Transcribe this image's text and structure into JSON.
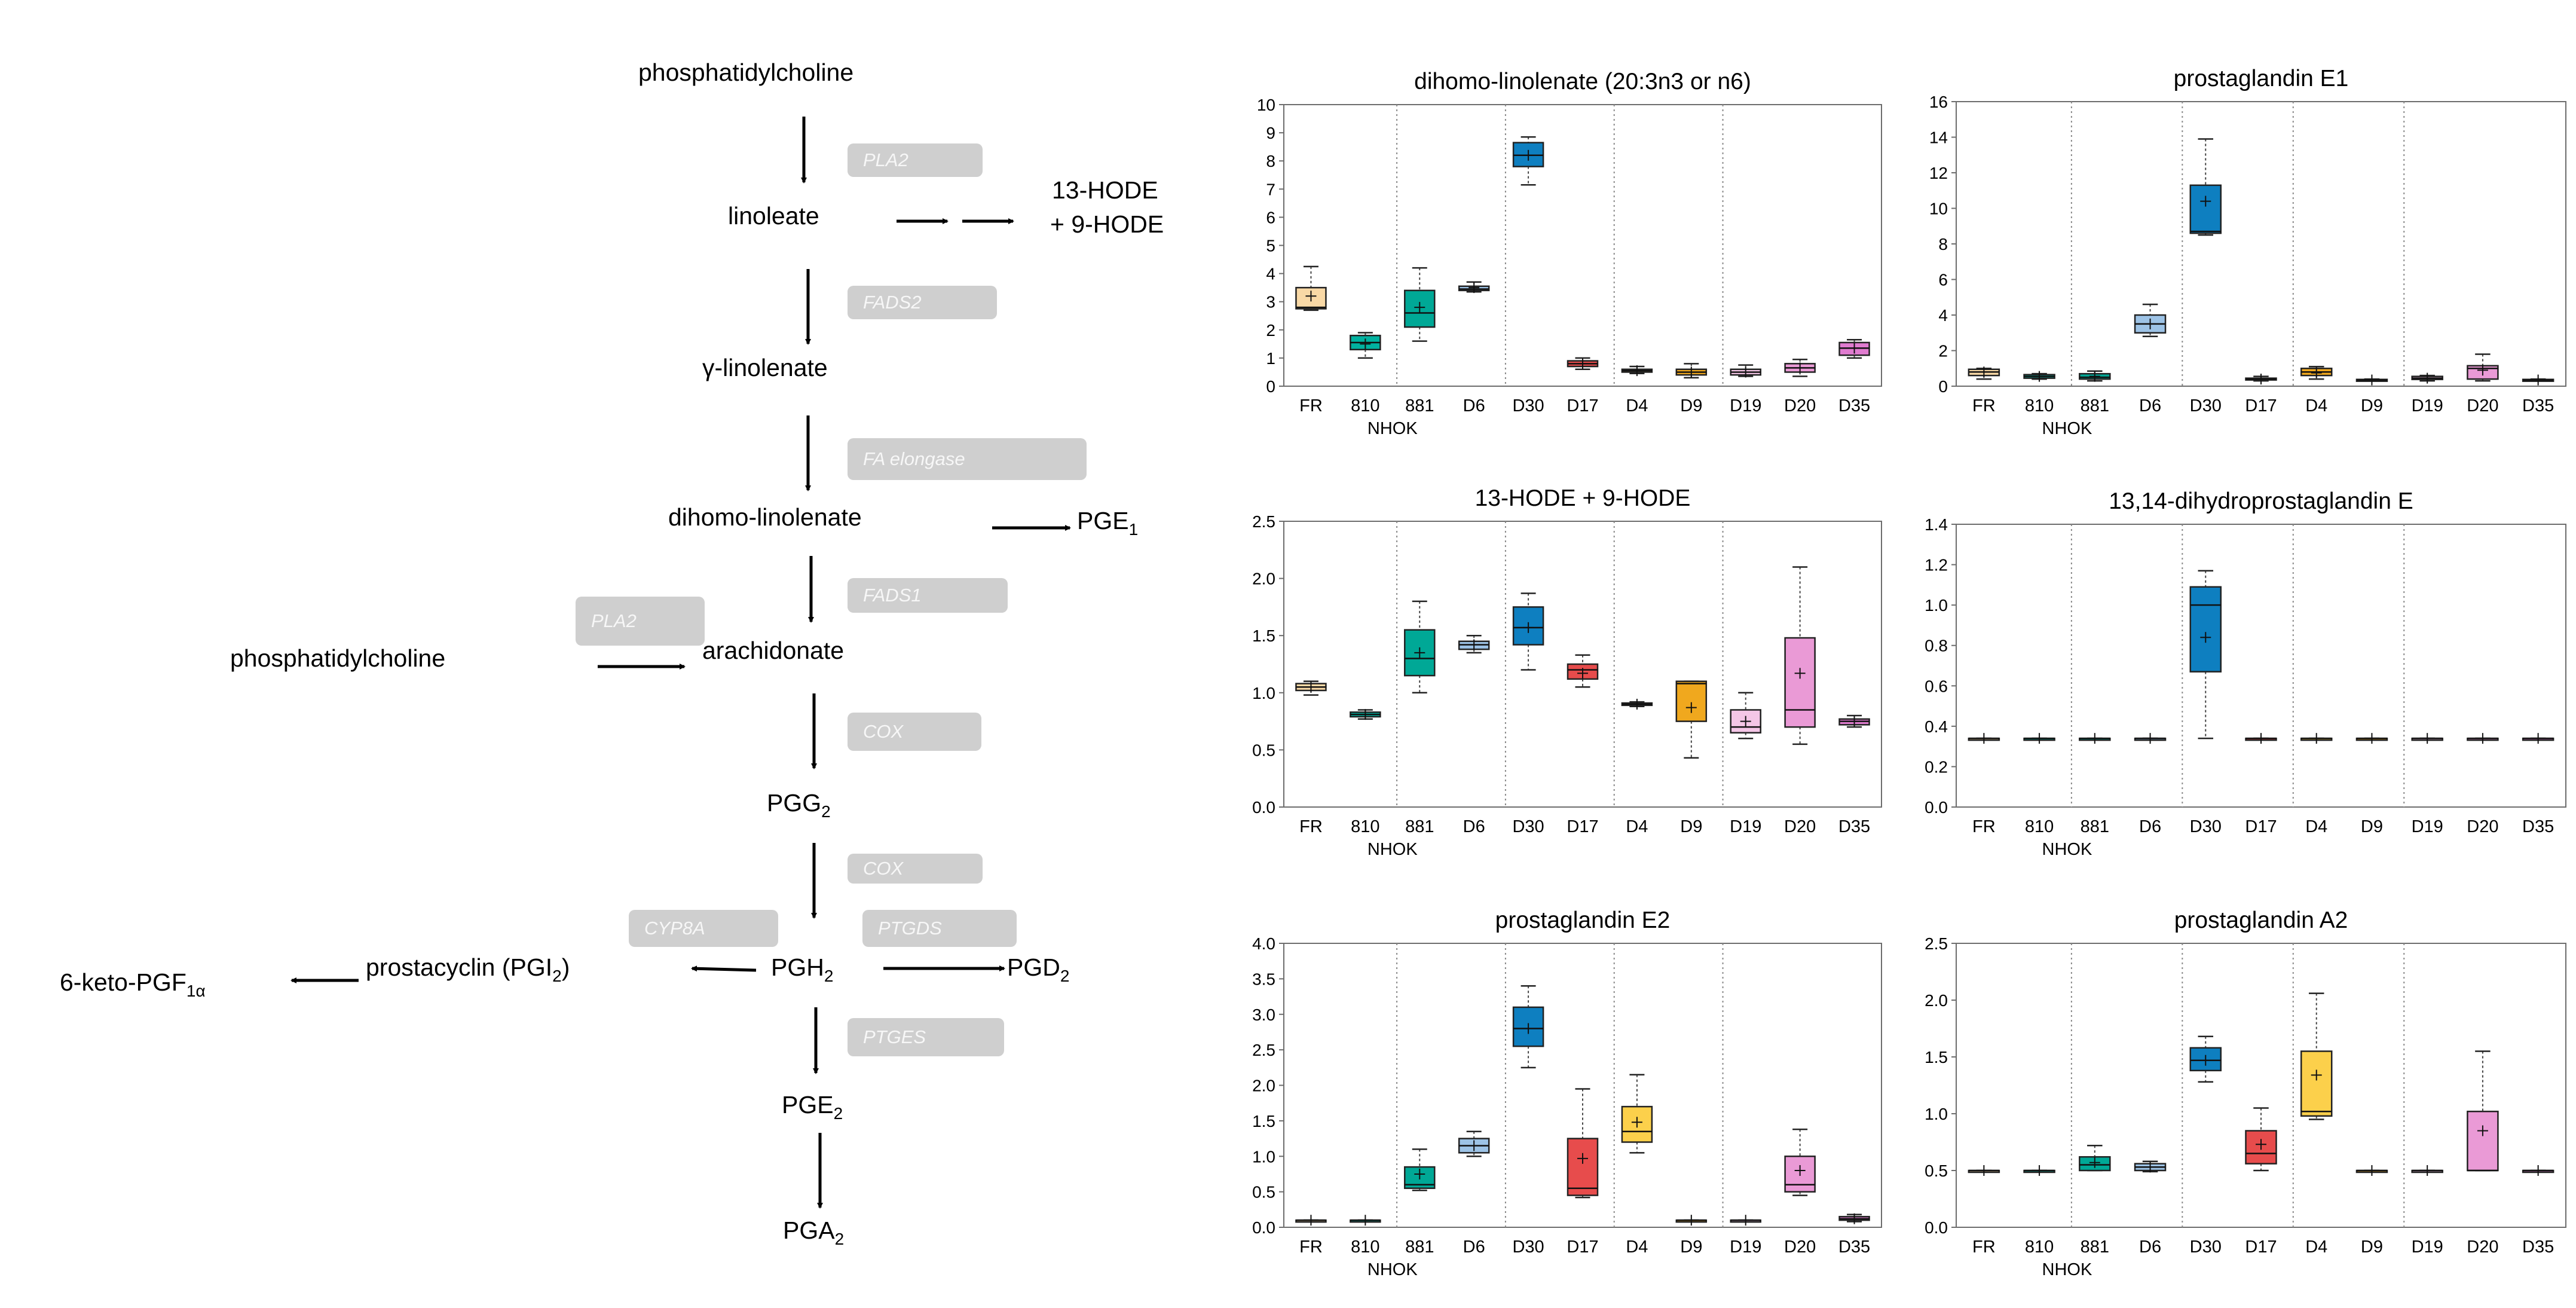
{
  "pathway": {
    "nodes": {
      "pc_top": "phosphatidylcholine",
      "linoleate": "linoleate",
      "hode_line1": "13-HODE",
      "hode_line2": "+ 9-HODE",
      "gamma_linolenate": "γ-linolenate",
      "dihomo_linolenate": "dihomo-linolenate",
      "pge1_base": "PGE",
      "pge1_sub": "1",
      "arachidonate": "arachidonate",
      "pc_left": "phosphatidylcholine",
      "pgg2_base": "PGG",
      "pgg2_sub": "2",
      "pgh2_base": "PGH",
      "pgh2_sub": "2",
      "pgd2_base": "PGD",
      "pgd2_sub": "2",
      "prostacyclin_base": "prostacyclin (PGI",
      "prostacyclin_sub": "2",
      "prostacyclin_end": ")",
      "keto_base": "6-keto-PGF",
      "keto_sub": "1α",
      "pge2_base": "PGE",
      "pge2_sub": "2",
      "pga2_base": "PGA",
      "pga2_sub": "2"
    },
    "enzymes": {
      "pla2_top": "PLA2",
      "fads2": "FADS2",
      "fa_elongase": "FA elongase",
      "fads1": "FADS1",
      "pla2_left": "PLA2",
      "cox_1": "COX",
      "cox_2": "COX",
      "cyp8a": "CYP8A",
      "ptgds": "PTGDS",
      "ptges": "PTGES"
    }
  },
  "chart_data": [
    {
      "type": "box",
      "title": "dihomo-linolenate (20:3n3 or n6)",
      "categories": [
        "FR",
        "810",
        "881",
        "D6",
        "D30",
        "D17",
        "D4",
        "D9",
        "D19",
        "D20",
        "D35"
      ],
      "group_label": "NHOK",
      "ylim": [
        0,
        10
      ],
      "yticks": [
        "0",
        "1",
        "2",
        "3",
        "4",
        "5",
        "6",
        "7",
        "8",
        "9",
        "10"
      ],
      "boxes": [
        {
          "min": 2.7,
          "q1": 2.75,
          "median": 2.8,
          "q3": 3.5,
          "max": 4.25,
          "mean": 3.2,
          "color": "#f9d9a6"
        },
        {
          "min": 1.0,
          "q1": 1.3,
          "median": 1.55,
          "q3": 1.8,
          "max": 1.9,
          "mean": 1.5,
          "color": "#00b2a0"
        },
        {
          "min": 1.6,
          "q1": 2.1,
          "median": 2.6,
          "q3": 3.4,
          "max": 4.2,
          "mean": 2.8,
          "color": "#00a896"
        },
        {
          "min": 3.35,
          "q1": 3.4,
          "median": 3.45,
          "q3": 3.55,
          "max": 3.7,
          "mean": 3.5,
          "color": "#9dc3e6"
        },
        {
          "min": 7.15,
          "q1": 7.8,
          "median": 8.2,
          "q3": 8.65,
          "max": 8.85,
          "mean": 8.2,
          "color": "#0e7fc0"
        },
        {
          "min": 0.6,
          "q1": 0.7,
          "median": 0.8,
          "q3": 0.9,
          "max": 1.0,
          "mean": 0.8,
          "color": "#e74c4c"
        },
        {
          "min": 0.45,
          "q1": 0.5,
          "median": 0.55,
          "q3": 0.6,
          "max": 0.7,
          "mean": 0.55,
          "color": "#fcd04b"
        },
        {
          "min": 0.3,
          "q1": 0.4,
          "median": 0.5,
          "q3": 0.6,
          "max": 0.8,
          "mean": 0.5,
          "color": "#f0a81e"
        },
        {
          "min": 0.35,
          "q1": 0.4,
          "median": 0.5,
          "q3": 0.6,
          "max": 0.75,
          "mean": 0.5,
          "color": "#f4c6e6"
        },
        {
          "min": 0.35,
          "q1": 0.5,
          "median": 0.65,
          "q3": 0.8,
          "max": 0.95,
          "mean": 0.65,
          "color": "#ea9ad6"
        },
        {
          "min": 1.0,
          "q1": 1.1,
          "median": 1.35,
          "q3": 1.55,
          "max": 1.65,
          "mean": 1.35,
          "color": "#e07cd0"
        }
      ]
    },
    {
      "type": "box",
      "title": "prostaglandin E1",
      "categories": [
        "FR",
        "810",
        "881",
        "D6",
        "D30",
        "D17",
        "D4",
        "D9",
        "D19",
        "D20",
        "D35"
      ],
      "group_label": "NHOK",
      "ylim": [
        0,
        16
      ],
      "yticks": [
        "0",
        "2",
        "4",
        "6",
        "8",
        "10",
        "12",
        "14",
        "16"
      ],
      "boxes": [
        {
          "min": 0.4,
          "q1": 0.6,
          "median": 0.8,
          "q3": 0.95,
          "max": 1.0,
          "mean": 0.8,
          "color": "#f9d9a6"
        },
        {
          "min": 0.4,
          "q1": 0.45,
          "median": 0.55,
          "q3": 0.65,
          "max": 0.7,
          "mean": 0.55,
          "color": "#00b2a0"
        },
        {
          "min": 0.3,
          "q1": 0.4,
          "median": 0.5,
          "q3": 0.7,
          "max": 0.85,
          "mean": 0.55,
          "color": "#00a896"
        },
        {
          "min": 2.8,
          "q1": 3.0,
          "median": 3.5,
          "q3": 4.0,
          "max": 4.6,
          "mean": 3.5,
          "color": "#9dc3e6"
        },
        {
          "min": 8.5,
          "q1": 8.6,
          "median": 8.7,
          "q3": 11.3,
          "max": 13.9,
          "mean": 10.4,
          "color": "#0e7fc0"
        },
        {
          "min": 0.3,
          "q1": 0.35,
          "median": 0.4,
          "q3": 0.45,
          "max": 0.55,
          "mean": 0.4,
          "color": "#e74c4c"
        },
        {
          "min": 0.4,
          "q1": 0.6,
          "median": 0.8,
          "q3": 1.0,
          "max": 1.1,
          "mean": 0.75,
          "color": "#f0a81e"
        },
        {
          "min": 0.3,
          "q1": 0.33,
          "median": 0.35,
          "q3": 0.38,
          "max": 0.4,
          "mean": 0.35,
          "color": "#f4c6e6"
        },
        {
          "min": 0.3,
          "q1": 0.38,
          "median": 0.45,
          "q3": 0.55,
          "max": 0.6,
          "mean": 0.45,
          "color": "#f4c6e6"
        },
        {
          "min": 0.3,
          "q1": 0.4,
          "median": 1.0,
          "q3": 1.15,
          "max": 1.8,
          "mean": 0.9,
          "color": "#ea9ad6"
        },
        {
          "min": 0.3,
          "q1": 0.33,
          "median": 0.35,
          "q3": 0.38,
          "max": 0.4,
          "mean": 0.35,
          "color": "#e07cd0"
        }
      ]
    },
    {
      "type": "box",
      "title": "13-HODE + 9-HODE",
      "categories": [
        "FR",
        "810",
        "881",
        "D6",
        "D30",
        "D17",
        "D4",
        "D9",
        "D19",
        "D20",
        "D35"
      ],
      "group_label": "NHOK",
      "ylim": [
        0,
        2.5
      ],
      "yticks": [
        "0.0",
        "0.5",
        "1.0",
        "1.5",
        "2.0",
        "2.5"
      ],
      "boxes": [
        {
          "min": 0.98,
          "q1": 1.02,
          "median": 1.05,
          "q3": 1.08,
          "max": 1.1,
          "mean": 1.05,
          "color": "#f9d9a6"
        },
        {
          "min": 0.77,
          "q1": 0.79,
          "median": 0.81,
          "q3": 0.83,
          "max": 0.85,
          "mean": 0.81,
          "color": "#00b2a0"
        },
        {
          "min": 1.0,
          "q1": 1.15,
          "median": 1.3,
          "q3": 1.55,
          "max": 1.8,
          "mean": 1.35,
          "color": "#00a896"
        },
        {
          "min": 1.35,
          "q1": 1.38,
          "median": 1.42,
          "q3": 1.45,
          "max": 1.5,
          "mean": 1.42,
          "color": "#9dc3e6"
        },
        {
          "min": 1.2,
          "q1": 1.42,
          "median": 1.57,
          "q3": 1.75,
          "max": 1.87,
          "mean": 1.57,
          "color": "#0e7fc0"
        },
        {
          "min": 1.05,
          "q1": 1.12,
          "median": 1.2,
          "q3": 1.25,
          "max": 1.33,
          "mean": 1.17,
          "color": "#e74c4c"
        },
        {
          "min": 0.88,
          "q1": 0.89,
          "median": 0.9,
          "q3": 0.91,
          "max": 0.92,
          "mean": 0.9,
          "color": "#fcd04b"
        },
        {
          "min": 0.43,
          "q1": 0.75,
          "median": 1.08,
          "q3": 1.1,
          "max": 1.1,
          "mean": 0.87,
          "color": "#f0a81e"
        },
        {
          "min": 0.6,
          "q1": 0.65,
          "median": 0.7,
          "q3": 0.85,
          "max": 1.0,
          "mean": 0.75,
          "color": "#f4c6e6"
        },
        {
          "min": 0.55,
          "q1": 0.7,
          "median": 0.85,
          "q3": 1.48,
          "max": 2.1,
          "mean": 1.17,
          "color": "#ea9ad6"
        },
        {
          "min": 0.7,
          "q1": 0.72,
          "median": 0.75,
          "q3": 0.77,
          "max": 0.8,
          "mean": 0.75,
          "color": "#e07cd0"
        }
      ]
    },
    {
      "type": "box",
      "title": "13,14-dihydroprostaglandin E",
      "categories": [
        "FR",
        "810",
        "881",
        "D6",
        "D30",
        "D17",
        "D4",
        "D9",
        "D19",
        "D20",
        "D35"
      ],
      "group_label": "NHOK",
      "ylim": [
        0,
        1.4
      ],
      "yticks": [
        "0.0",
        "0.2",
        "0.4",
        "0.6",
        "0.8",
        "1.0",
        "1.2",
        "1.4"
      ],
      "boxes": [
        {
          "min": 0.34,
          "q1": 0.34,
          "median": 0.34,
          "q3": 0.34,
          "max": 0.34,
          "mean": 0.34,
          "color": "#f9d9a6"
        },
        {
          "min": 0.34,
          "q1": 0.34,
          "median": 0.34,
          "q3": 0.34,
          "max": 0.34,
          "mean": 0.34,
          "color": "#00b2a0"
        },
        {
          "min": 0.34,
          "q1": 0.34,
          "median": 0.34,
          "q3": 0.34,
          "max": 0.34,
          "mean": 0.34,
          "color": "#00a896"
        },
        {
          "min": 0.34,
          "q1": 0.34,
          "median": 0.34,
          "q3": 0.34,
          "max": 0.34,
          "mean": 0.34,
          "color": "#9dc3e6"
        },
        {
          "min": 0.34,
          "q1": 0.67,
          "median": 1.0,
          "q3": 1.09,
          "max": 1.17,
          "mean": 0.84,
          "color": "#0e7fc0"
        },
        {
          "min": 0.34,
          "q1": 0.34,
          "median": 0.34,
          "q3": 0.34,
          "max": 0.34,
          "mean": 0.34,
          "color": "#e74c4c"
        },
        {
          "min": 0.34,
          "q1": 0.34,
          "median": 0.34,
          "q3": 0.34,
          "max": 0.34,
          "mean": 0.34,
          "color": "#fcd04b"
        },
        {
          "min": 0.34,
          "q1": 0.34,
          "median": 0.34,
          "q3": 0.34,
          "max": 0.34,
          "mean": 0.34,
          "color": "#f0a81e"
        },
        {
          "min": 0.34,
          "q1": 0.34,
          "median": 0.34,
          "q3": 0.34,
          "max": 0.34,
          "mean": 0.34,
          "color": "#f4c6e6"
        },
        {
          "min": 0.34,
          "q1": 0.34,
          "median": 0.34,
          "q3": 0.34,
          "max": 0.34,
          "mean": 0.34,
          "color": "#ea9ad6"
        },
        {
          "min": 0.34,
          "q1": 0.34,
          "median": 0.34,
          "q3": 0.34,
          "max": 0.34,
          "mean": 0.34,
          "color": "#e07cd0"
        }
      ]
    },
    {
      "type": "box",
      "title": "prostaglandin E2",
      "categories": [
        "FR",
        "810",
        "881",
        "D6",
        "D30",
        "D17",
        "D4",
        "D9",
        "D19",
        "D20",
        "D35"
      ],
      "group_label": "NHOK",
      "ylim": [
        0,
        4
      ],
      "yticks": [
        "0.0",
        "0.5",
        "1.0",
        "1.5",
        "2.0",
        "2.5",
        "3.0",
        "3.5",
        "4.0"
      ],
      "boxes": [
        {
          "min": 0.1,
          "q1": 0.1,
          "median": 0.1,
          "q3": 0.1,
          "max": 0.1,
          "mean": 0.1,
          "color": "#f9d9a6"
        },
        {
          "min": 0.1,
          "q1": 0.1,
          "median": 0.1,
          "q3": 0.1,
          "max": 0.1,
          "mean": 0.1,
          "color": "#00b2a0"
        },
        {
          "min": 0.52,
          "q1": 0.55,
          "median": 0.6,
          "q3": 0.85,
          "max": 1.1,
          "mean": 0.75,
          "color": "#00a896"
        },
        {
          "min": 1.0,
          "q1": 1.05,
          "median": 1.15,
          "q3": 1.25,
          "max": 1.35,
          "mean": 1.15,
          "color": "#9dc3e6"
        },
        {
          "min": 2.25,
          "q1": 2.55,
          "median": 2.8,
          "q3": 3.1,
          "max": 3.4,
          "mean": 2.8,
          "color": "#0e7fc0"
        },
        {
          "min": 0.42,
          "q1": 0.45,
          "median": 0.55,
          "q3": 1.25,
          "max": 1.95,
          "mean": 0.97,
          "color": "#e74c4c"
        },
        {
          "min": 1.05,
          "q1": 1.2,
          "median": 1.35,
          "q3": 1.7,
          "max": 2.15,
          "mean": 1.48,
          "color": "#fcd04b"
        },
        {
          "min": 0.1,
          "q1": 0.1,
          "median": 0.1,
          "q3": 0.1,
          "max": 0.1,
          "mean": 0.1,
          "color": "#f0a81e"
        },
        {
          "min": 0.1,
          "q1": 0.1,
          "median": 0.1,
          "q3": 0.1,
          "max": 0.1,
          "mean": 0.1,
          "color": "#f4c6e6"
        },
        {
          "min": 0.45,
          "q1": 0.5,
          "median": 0.6,
          "q3": 1.0,
          "max": 1.38,
          "mean": 0.8,
          "color": "#ea9ad6"
        },
        {
          "min": 0.08,
          "q1": 0.1,
          "median": 0.12,
          "q3": 0.15,
          "max": 0.18,
          "mean": 0.12,
          "color": "#e07cd0"
        }
      ]
    },
    {
      "type": "box",
      "title": "prostaglandin A2",
      "categories": [
        "FR",
        "810",
        "881",
        "D6",
        "D30",
        "D17",
        "D4",
        "D9",
        "D19",
        "D20",
        "D35"
      ],
      "group_label": "NHOK",
      "ylim": [
        0,
        2.5
      ],
      "yticks": [
        "0.0",
        "0.5",
        "1.0",
        "1.5",
        "2.0",
        "2.5"
      ],
      "boxes": [
        {
          "min": 0.5,
          "q1": 0.5,
          "median": 0.5,
          "q3": 0.5,
          "max": 0.5,
          "mean": 0.5,
          "color": "#f9d9a6"
        },
        {
          "min": 0.5,
          "q1": 0.5,
          "median": 0.5,
          "q3": 0.5,
          "max": 0.5,
          "mean": 0.5,
          "color": "#00b2a0"
        },
        {
          "min": 0.5,
          "q1": 0.5,
          "median": 0.55,
          "q3": 0.62,
          "max": 0.72,
          "mean": 0.57,
          "color": "#00a896"
        },
        {
          "min": 0.49,
          "q1": 0.5,
          "median": 0.53,
          "q3": 0.56,
          "max": 0.58,
          "mean": 0.53,
          "color": "#9dc3e6"
        },
        {
          "min": 1.28,
          "q1": 1.38,
          "median": 1.47,
          "q3": 1.58,
          "max": 1.68,
          "mean": 1.47,
          "color": "#0e7fc0"
        },
        {
          "min": 0.5,
          "q1": 0.56,
          "median": 0.65,
          "q3": 0.85,
          "max": 1.05,
          "mean": 0.73,
          "color": "#e74c4c"
        },
        {
          "min": 0.95,
          "q1": 0.98,
          "median": 1.02,
          "q3": 1.55,
          "max": 2.06,
          "mean": 1.34,
          "color": "#fcd04b"
        },
        {
          "min": 0.5,
          "q1": 0.5,
          "median": 0.5,
          "q3": 0.5,
          "max": 0.5,
          "mean": 0.5,
          "color": "#f0a81e"
        },
        {
          "min": 0.5,
          "q1": 0.5,
          "median": 0.5,
          "q3": 0.5,
          "max": 0.5,
          "mean": 0.5,
          "color": "#f4c6e6"
        },
        {
          "min": 0.5,
          "q1": 0.5,
          "median": 0.5,
          "q3": 1.02,
          "max": 1.55,
          "mean": 0.85,
          "color": "#ea9ad6"
        },
        {
          "min": 0.5,
          "q1": 0.5,
          "median": 0.5,
          "q3": 0.5,
          "max": 0.5,
          "mean": 0.5,
          "color": "#e07cd0"
        }
      ]
    }
  ]
}
